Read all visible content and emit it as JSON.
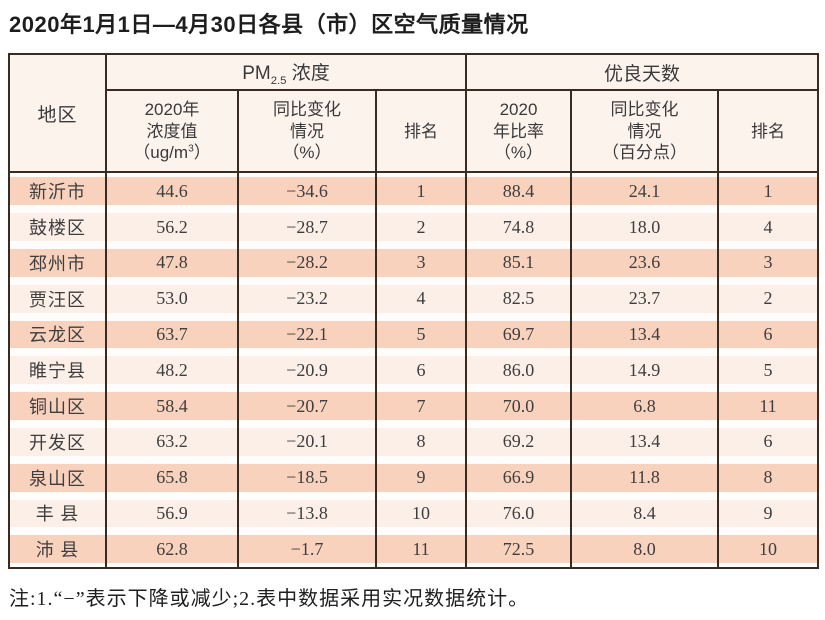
{
  "page": {
    "title": "2020年1月1日—4月30日各县（市）区空气质量情况",
    "note": "注:1.“−”表示下降或减少;2.表中数据采用实况数据统计。"
  },
  "table": {
    "region_header": "地区",
    "pm_group": {
      "prefix": "PM",
      "sub": "2.5",
      "suffix": " 浓度"
    },
    "good_group_title": "优良天数",
    "subheaders": {
      "pm_value_l1": "2020年",
      "pm_value_l2": "浓度值",
      "pm_value_unit_pre": "（ug/m",
      "pm_value_unit_sup": "3",
      "pm_value_unit_post": "）",
      "pm_change_l1": "同比变化",
      "pm_change_l2": "情况",
      "pm_change_l3": "（%）",
      "pm_rank": "排名",
      "good_rate_l1": "2020",
      "good_rate_l2": "年比率",
      "good_rate_l3": "（%）",
      "good_change_l1": "同比变化",
      "good_change_l2": "情况",
      "good_change_l3": "（百分点）",
      "good_rank": "排名"
    },
    "rows": [
      {
        "region": "新沂市",
        "pm_value": "44.6",
        "pm_change": "−34.6",
        "pm_rank": "1",
        "good_rate": "88.4",
        "good_change": "24.1",
        "good_rank": "1"
      },
      {
        "region": "鼓楼区",
        "pm_value": "56.2",
        "pm_change": "−28.7",
        "pm_rank": "2",
        "good_rate": "74.8",
        "good_change": "18.0",
        "good_rank": "4"
      },
      {
        "region": "邳州市",
        "pm_value": "47.8",
        "pm_change": "−28.2",
        "pm_rank": "3",
        "good_rate": "85.1",
        "good_change": "23.6",
        "good_rank": "3"
      },
      {
        "region": "贾汪区",
        "pm_value": "53.0",
        "pm_change": "−23.2",
        "pm_rank": "4",
        "good_rate": "82.5",
        "good_change": "23.7",
        "good_rank": "2"
      },
      {
        "region": "云龙区",
        "pm_value": "63.7",
        "pm_change": "−22.1",
        "pm_rank": "5",
        "good_rate": "69.7",
        "good_change": "13.4",
        "good_rank": "6"
      },
      {
        "region": "睢宁县",
        "pm_value": "48.2",
        "pm_change": "−20.9",
        "pm_rank": "6",
        "good_rate": "86.0",
        "good_change": "14.9",
        "good_rank": "5"
      },
      {
        "region": "铜山区",
        "pm_value": "58.4",
        "pm_change": "−20.7",
        "pm_rank": "7",
        "good_rate": "70.0",
        "good_change": "6.8",
        "good_rank": "11"
      },
      {
        "region": "开发区",
        "pm_value": "63.2",
        "pm_change": "−20.1",
        "pm_rank": "8",
        "good_rate": "69.2",
        "good_change": "13.4",
        "good_rank": "6"
      },
      {
        "region": "泉山区",
        "pm_value": "65.8",
        "pm_change": "−18.5",
        "pm_rank": "9",
        "good_rate": "66.9",
        "good_change": "11.8",
        "good_rank": "8"
      },
      {
        "region": "丰 县",
        "pm_value": "56.9",
        "pm_change": "−13.8",
        "pm_rank": "10",
        "good_rate": "76.0",
        "good_change": "8.4",
        "good_rank": "9"
      },
      {
        "region": "沛 县",
        "pm_value": "62.8",
        "pm_change": "−1.7",
        "pm_rank": "11",
        "good_rate": "72.5",
        "good_change": "8.0",
        "good_rank": "10"
      }
    ],
    "colors": {
      "border": "#3a2b22",
      "header_bg": "#fdf3ed",
      "odd_row_band": "#f9d2be",
      "even_row_band": "#fcefe8",
      "row_gap": "#fffdfb"
    }
  }
}
